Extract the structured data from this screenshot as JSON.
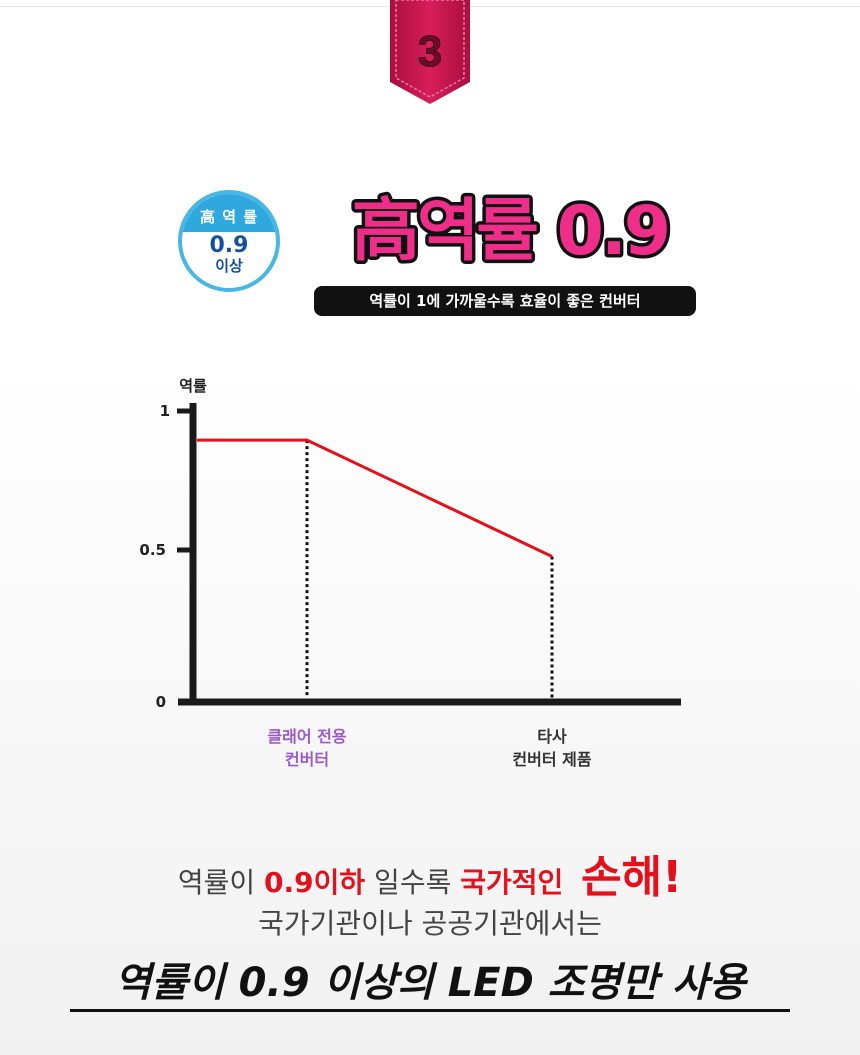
{
  "ribbon": {
    "number": "3",
    "color": "#c8174f"
  },
  "badge": {
    "caption": "高 역 률",
    "value": "0.9",
    "sub": "이상"
  },
  "headline": {
    "title": "高역률 0.9",
    "subtitle": "역률이 1에 가까울수록 효율이 좋은 컨버터"
  },
  "chart_data": {
    "type": "line",
    "ylabel": "역률",
    "ylim": [
      0,
      1
    ],
    "y_ticks": [
      "1",
      "0.5",
      "0"
    ],
    "categories": [
      {
        "line1": "클래어 전용",
        "line2": "컨버터",
        "color": "#9b59c9"
      },
      {
        "line1": "타사",
        "line2": "컨버터 제품",
        "color": "#333333"
      }
    ],
    "series": [
      {
        "points": [
          {
            "x": 0,
            "y": 0.9
          },
          {
            "x": 1,
            "y": 0.9
          },
          {
            "x": 2,
            "y": 0.5
          }
        ],
        "color": "#e4111c"
      }
    ],
    "reference_lines": [
      "클래어 전용 컨버터",
      "타사 컨버터 제품"
    ]
  },
  "footer": {
    "line1_a": "역률이 ",
    "line1_b": "0.9이하",
    "line1_c": " 일수록 ",
    "line1_d": "국가적인",
    "line1_e": "손해!",
    "line2": "국가기관이나 공공기관에서는",
    "line3": "역률이 0.9 이상의 LED 조명만 사용"
  }
}
